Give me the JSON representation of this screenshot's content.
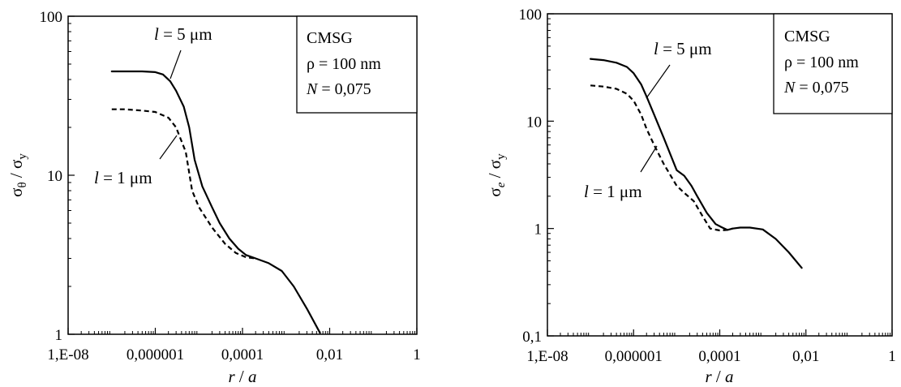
{
  "chart_data": [
    {
      "type": "line",
      "x_scale": "log",
      "y_scale": "log",
      "xlim": [
        1e-08,
        1
      ],
      "ylim": [
        1,
        100
      ],
      "x_ticks": [
        {
          "value": 1e-08,
          "label": "1,E-08"
        },
        {
          "value": 1e-06,
          "label": "0,000001"
        },
        {
          "value": 0.0001,
          "label": "0,0001"
        },
        {
          "value": 0.01,
          "label": "0,01"
        },
        {
          "value": 1,
          "label": "1"
        }
      ],
      "y_ticks": [
        {
          "value": 1,
          "label": "1"
        },
        {
          "value": 10,
          "label": "10"
        },
        {
          "value": 100,
          "label": "100"
        }
      ],
      "xlabel": {
        "main": "r",
        "sep": " / ",
        "tail": "a"
      },
      "ylabel": {
        "main": "σ",
        "sub": "θ",
        "sep": " / σ",
        "sub2": "y"
      },
      "legend": {
        "position": "top-right",
        "lines": [
          {
            "text": "CMSG"
          },
          {
            "text": "ρ = 100 nm"
          },
          {
            "italic": "N",
            "text": " = 0,075"
          }
        ]
      },
      "series": [
        {
          "name": "l = 5 μm",
          "dash": "solid",
          "x": [
            1e-07,
            2e-07,
            5e-07,
            1e-06,
            1.5e-06,
            2.2e-06,
            3e-06,
            4.5e-06,
            6e-06,
            8e-06,
            1.2e-05,
            2e-05,
            3e-05,
            5e-05,
            8e-05,
            0.00012,
            0.0002,
            0.0004,
            0.0008,
            0.0015,
            0.003,
            0.006
          ],
          "y": [
            45,
            45,
            45,
            44.5,
            43,
            39,
            34,
            27,
            20,
            12.5,
            8.5,
            6.3,
            5.0,
            4.0,
            3.45,
            3.15,
            3.0,
            2.8,
            2.5,
            2.0,
            1.45,
            1.02
          ]
        },
        {
          "name": "l = 1 μm",
          "dash": "dashed",
          "x": [
            1e-07,
            2e-07,
            5e-07,
            1e-06,
            2e-06,
            3e-06,
            5e-06,
            7e-06,
            1e-05,
            2e-05,
            4e-05,
            7e-05,
            0.00012,
            0.0002
          ],
          "y": [
            26,
            26,
            25.5,
            25,
            23,
            20,
            14,
            8,
            6.3,
            4.7,
            3.7,
            3.25,
            3.05,
            3.0
          ]
        }
      ],
      "annotations": [
        {
          "italic": "l",
          "text": " = 5 μm",
          "series": "l = 5 μm"
        },
        {
          "italic": "l",
          "text": " = 1 μm",
          "series": "l = 1 μm"
        }
      ]
    },
    {
      "type": "line",
      "x_scale": "log",
      "y_scale": "log",
      "xlim": [
        1e-08,
        1
      ],
      "ylim": [
        0.1,
        100
      ],
      "x_ticks": [
        {
          "value": 1e-08,
          "label": "1,E-08"
        },
        {
          "value": 1e-06,
          "label": "0,000001"
        },
        {
          "value": 0.0001,
          "label": "0,0001"
        },
        {
          "value": 0.01,
          "label": "0,01"
        },
        {
          "value": 1,
          "label": "1"
        }
      ],
      "y_ticks": [
        {
          "value": 0.1,
          "label": "0,1"
        },
        {
          "value": 1,
          "label": "1"
        },
        {
          "value": 10,
          "label": "10"
        },
        {
          "value": 100,
          "label": "100"
        }
      ],
      "xlabel": {
        "main": "r",
        "sep": " / ",
        "tail": "a"
      },
      "ylabel": {
        "main": "σ",
        "sub": "e",
        "sep": " / σ",
        "sub2": "y"
      },
      "legend": {
        "position": "top-right",
        "lines": [
          {
            "text": "CMSG"
          },
          {
            "text": "ρ = 100 nm"
          },
          {
            "italic": "N",
            "text": " = 0,075"
          }
        ]
      },
      "series": [
        {
          "name": "l = 5 μm",
          "dash": "solid",
          "x": [
            1e-07,
            2e-07,
            4e-07,
            7e-07,
            1e-06,
            1.5e-06,
            2e-06,
            3e-06,
            5e-06,
            1e-05,
            1.5e-05,
            2.2e-05,
            3e-05,
            5e-05,
            8e-05,
            0.00011,
            0.00015,
            0.0002,
            0.0003,
            0.0005,
            0.001,
            0.002,
            0.004,
            0.008
          ],
          "y": [
            38,
            37,
            35,
            32,
            28,
            22,
            17,
            11.5,
            7,
            3.5,
            3.1,
            2.5,
            2.0,
            1.4,
            1.1,
            1.03,
            0.97,
            1.0,
            1.02,
            1.02,
            0.98,
            0.8,
            0.6,
            0.43
          ]
        },
        {
          "name": "l = 1 μm",
          "dash": "dashed",
          "x": [
            1e-07,
            2e-07,
            4e-07,
            7e-07,
            1e-06,
            1.5e-06,
            2e-06,
            3e-06,
            5e-06,
            1e-05,
            1.5e-05,
            2.5e-05,
            4e-05,
            6e-05,
            0.0001,
            0.00015,
            0.0002
          ],
          "y": [
            21.5,
            21,
            20,
            18,
            15.5,
            11.5,
            8.5,
            6,
            4,
            2.5,
            2.15,
            1.8,
            1.3,
            1.0,
            0.96,
            0.97,
            1.0
          ]
        }
      ],
      "annotations": [
        {
          "italic": "l",
          "text": " = 5 μm",
          "series": "l = 5 μm"
        },
        {
          "italic": "l",
          "text": " = 1 μm",
          "series": "l = 1 μm"
        }
      ]
    }
  ]
}
